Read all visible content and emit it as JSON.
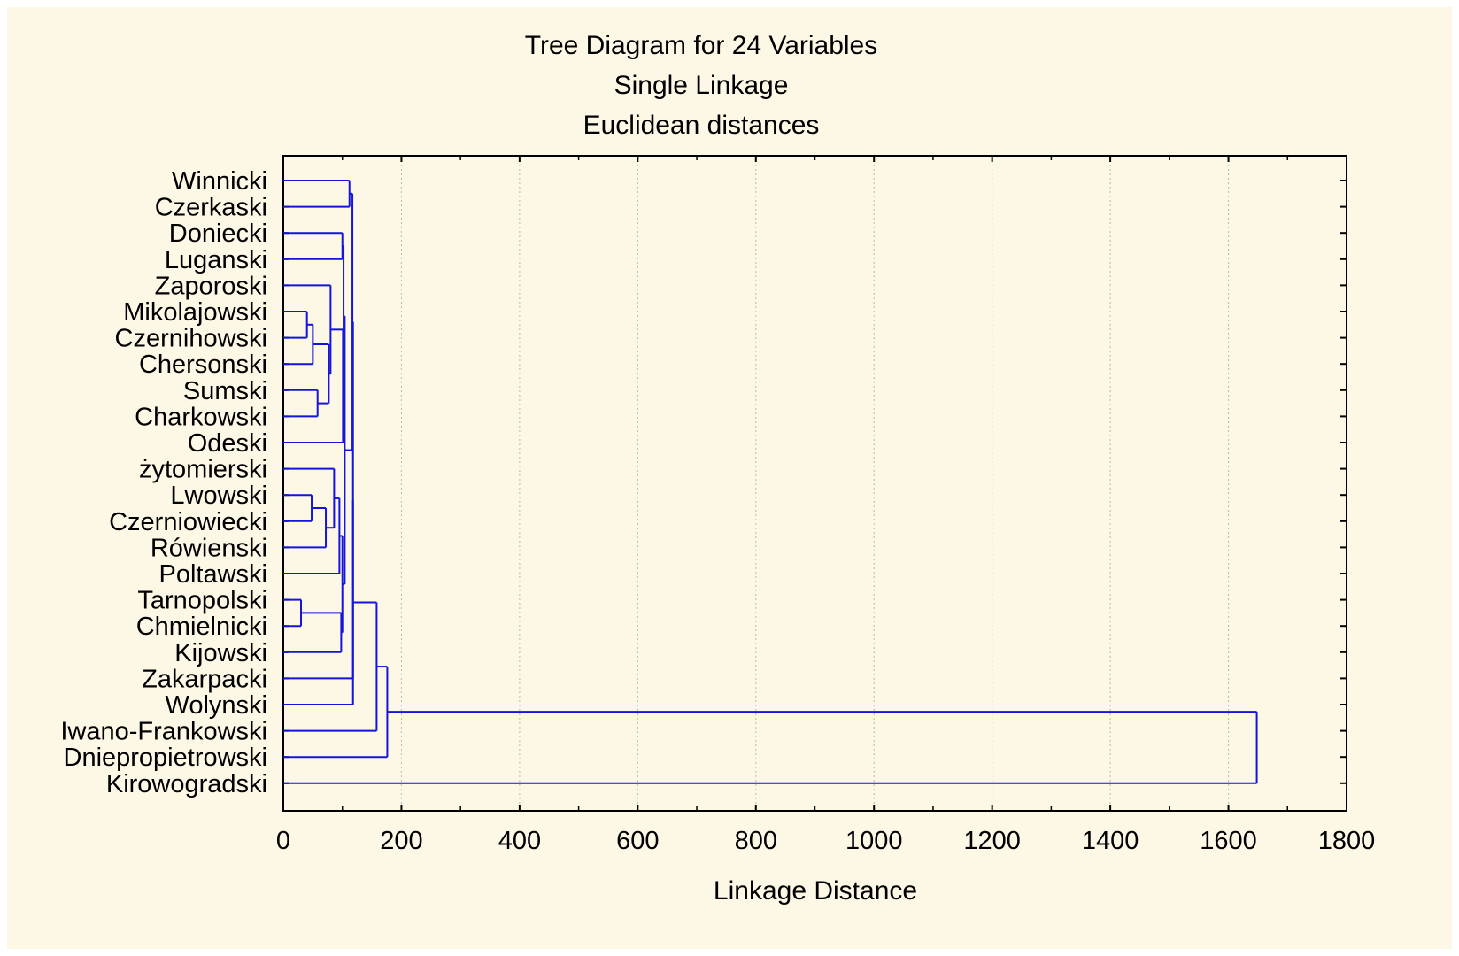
{
  "chart_data": {
    "type": "dendrogram",
    "title_lines": [
      "Tree Diagram for 24  Variables",
      "Single Linkage",
      "Euclidean distances"
    ],
    "xlabel": "Linkage Distance",
    "xlim": [
      0,
      1800
    ],
    "xticks": [
      "0",
      "200",
      "400",
      "600",
      "800",
      "1000",
      "1200",
      "1400",
      "1600",
      "1800"
    ],
    "grid": "vertical dotted",
    "line_color": "#1414dc",
    "leaves": [
      "Winnicki",
      "Czerkaski",
      "Doniecki",
      "Luganski",
      "Zaporoski",
      "Mikolajowski",
      "Czernihowski",
      "Chersonski",
      "Sumski",
      "Charkowski",
      "Odeski",
      "żytomierski",
      "Lwowski",
      "Czerniowiecki",
      "Rówienski",
      "Poltawski",
      "Tarnopolski",
      "Chmielnicki",
      "Kijowski",
      "Zakarpacki",
      "Wolynski",
      "Iwano-Frankowski",
      "Dniepropietrowski",
      "Kirowogradski"
    ],
    "merges": [
      {
        "left": "Tarnopolski",
        "right": "Chmielnicki",
        "distance": 30,
        "id": "C1"
      },
      {
        "left": "Mikolajowski",
        "right": "Czernihowski",
        "distance": 40,
        "id": "C2"
      },
      {
        "left": "Lwowski",
        "right": "Czerniowiecki",
        "distance": 48,
        "id": "C3"
      },
      {
        "left": "C2",
        "right": "Chersonski",
        "distance": 50,
        "id": "C4"
      },
      {
        "left": "Sumski",
        "right": "Charkowski",
        "distance": 58,
        "id": "C5"
      },
      {
        "left": "C3",
        "right": "Rówienski",
        "distance": 72,
        "id": "C6"
      },
      {
        "left": "C4",
        "right": "C5",
        "distance": 77,
        "id": "C7"
      },
      {
        "left": "Zaporoski",
        "right": "C7",
        "distance": 80,
        "id": "C8"
      },
      {
        "left": "żytomierski",
        "right": "C6",
        "distance": 86,
        "id": "C9"
      },
      {
        "left": "C9",
        "right": "Poltawski",
        "distance": 95,
        "id": "C10"
      },
      {
        "left": "C1",
        "right": "Kijowski",
        "distance": 98,
        "id": "C11"
      },
      {
        "left": "Doniecki",
        "right": "Luganski",
        "distance": 100,
        "id": "C12"
      },
      {
        "left": "C10",
        "right": "C11",
        "distance": 100,
        "id": "C13"
      },
      {
        "left": "C8",
        "right": "Odeski",
        "distance": 101,
        "id": "C14"
      },
      {
        "left": "C12",
        "right": "C14",
        "distance": 102,
        "id": "C15"
      },
      {
        "left": "C15",
        "right": "C13",
        "distance": 104,
        "id": "C16"
      },
      {
        "left": "Winnicki",
        "right": "Czerkaski",
        "distance": 112,
        "id": "C17"
      },
      {
        "left": "C17",
        "right": "C16",
        "distance": 117,
        "id": "C18"
      },
      {
        "left": "C18",
        "right": "Zakarpacki",
        "distance": 118,
        "id": "C19"
      },
      {
        "left": "C19",
        "right": "Wolynski",
        "distance": 118,
        "id": "C20"
      },
      {
        "left": "C20",
        "right": "Iwano-Frankowski",
        "distance": 158,
        "id": "C21"
      },
      {
        "left": "C21",
        "right": "Dniepropietrowski",
        "distance": 176,
        "id": "C22"
      },
      {
        "left": "C22",
        "right": "Kirowogradski",
        "distance": 1648,
        "id": "C23"
      }
    ]
  }
}
